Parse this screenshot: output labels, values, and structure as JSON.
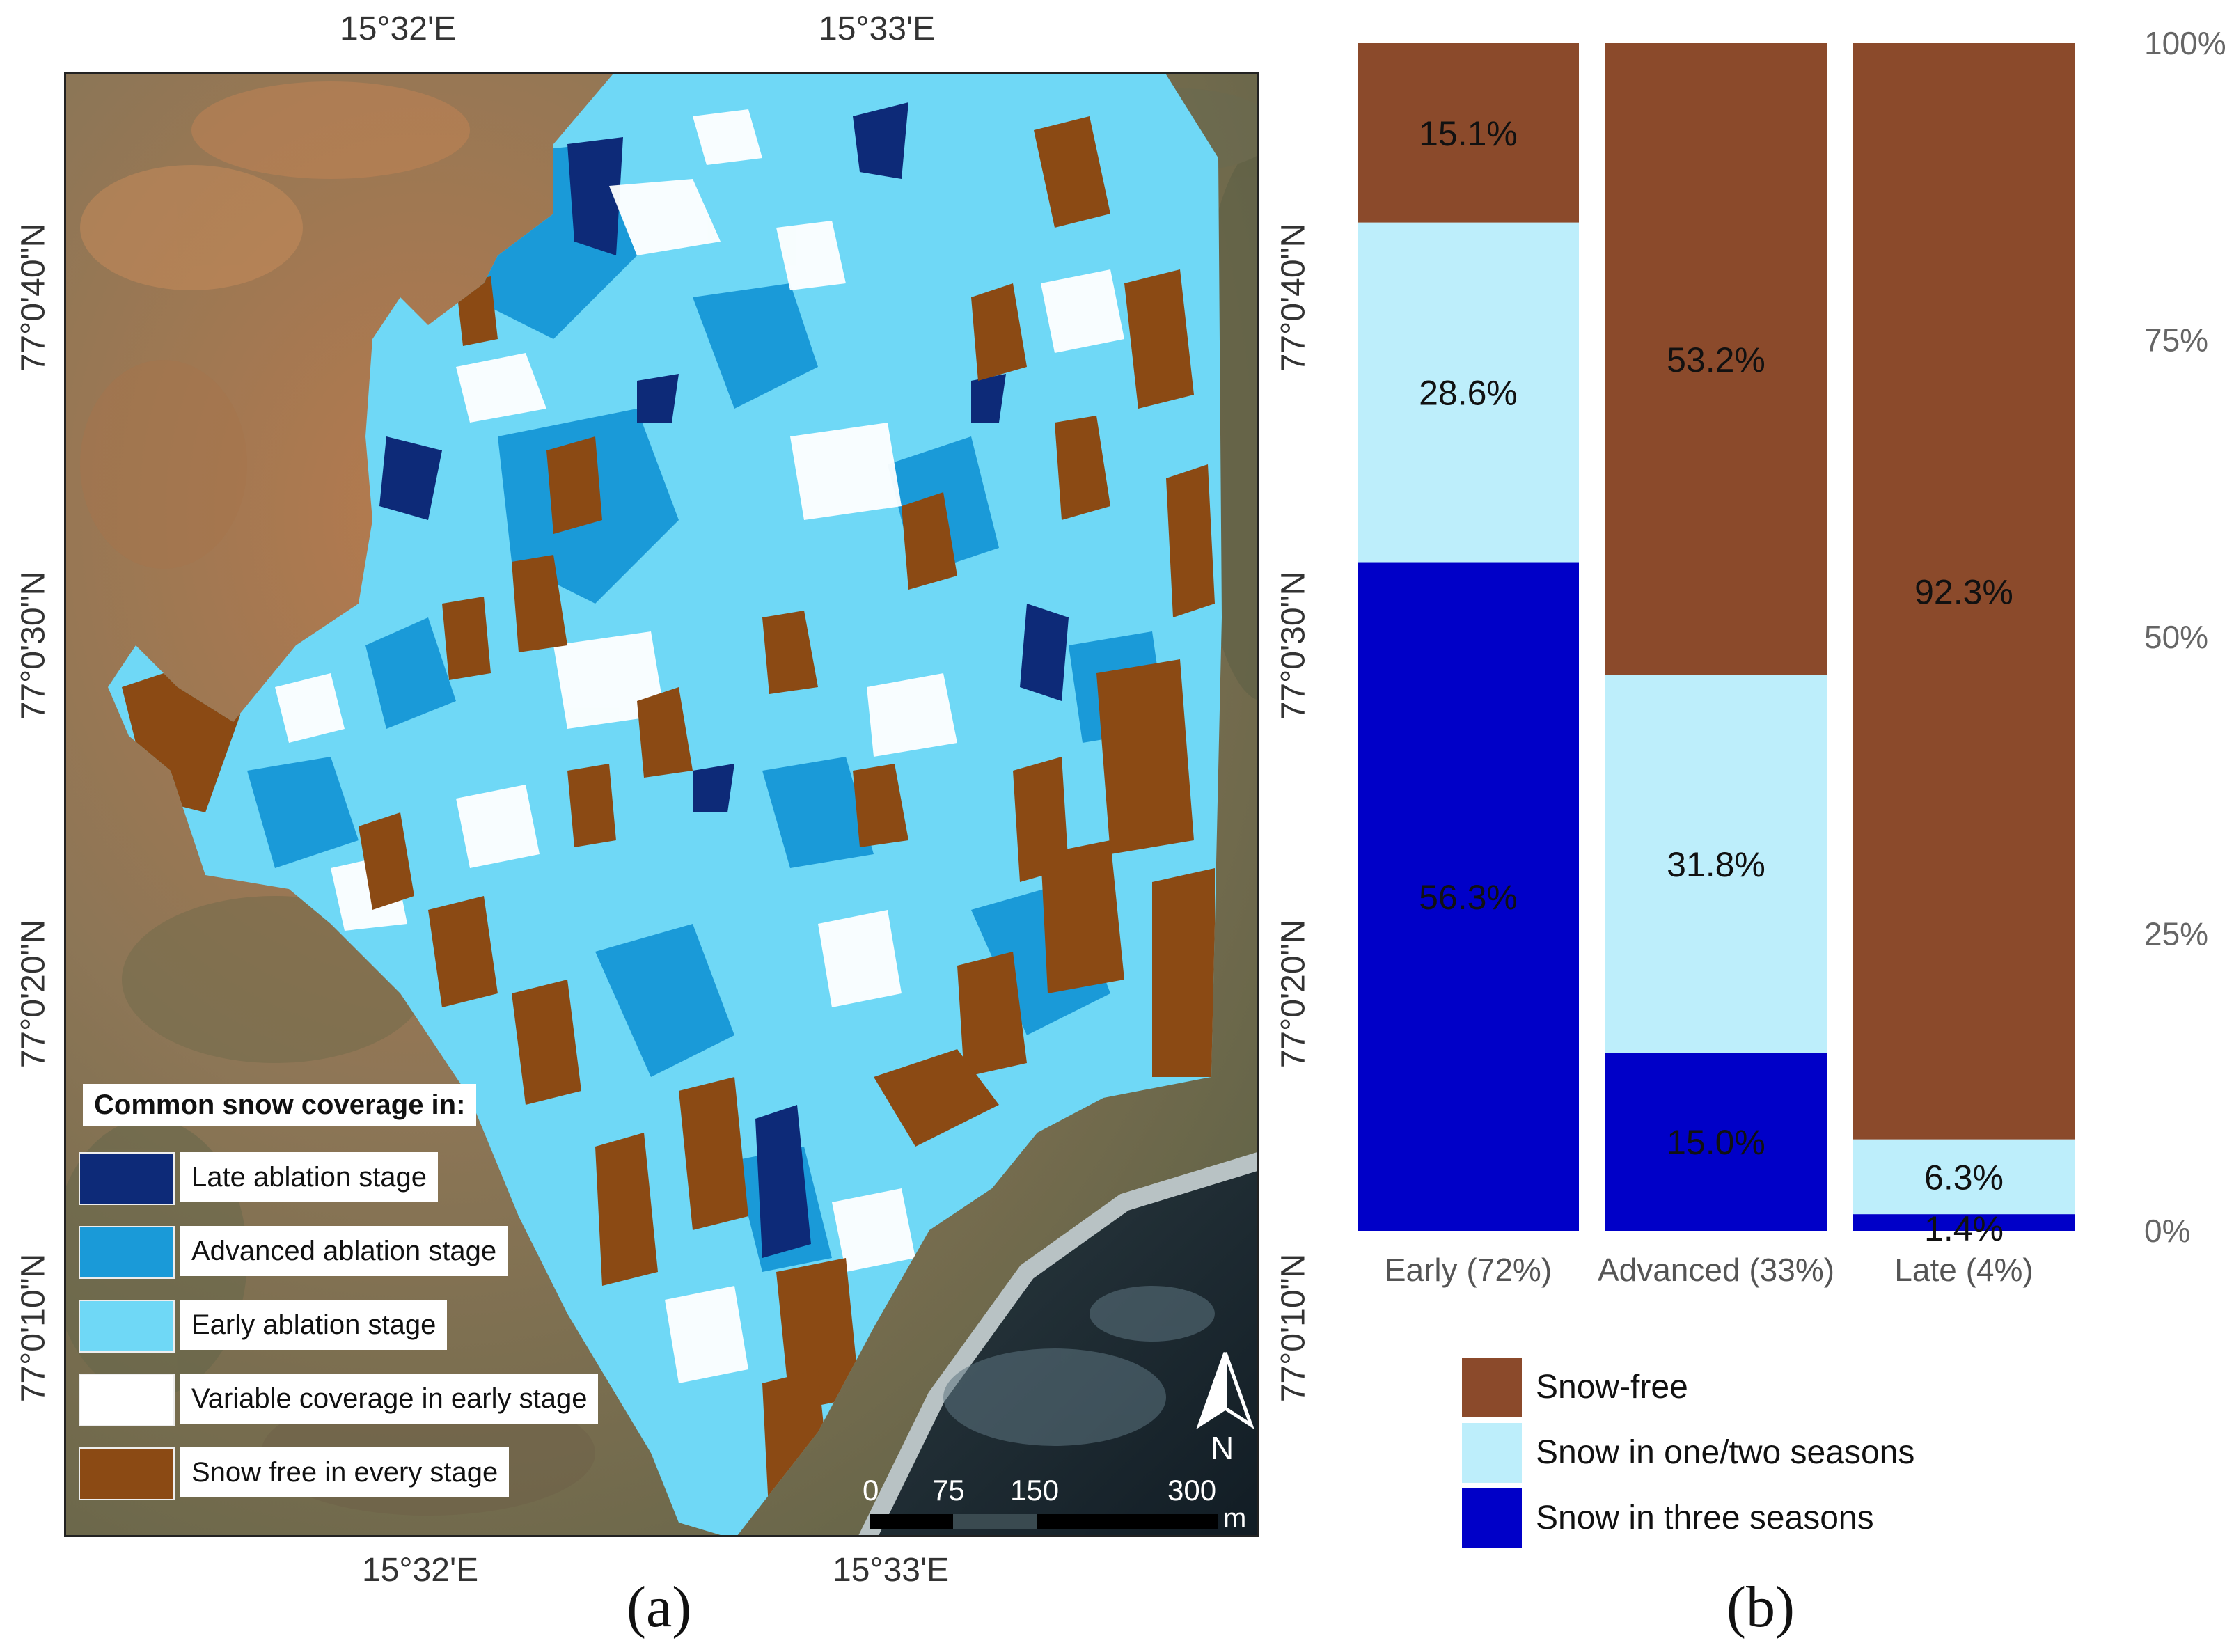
{
  "panel_a": {
    "label": "(a)",
    "lon_ticks_top": [
      "15°32'E",
      "15°33'E"
    ],
    "lon_ticks_bottom": [
      "15°32'E",
      "15°33'E"
    ],
    "lat_ticks_left": [
      "77°0'40\"N",
      "77°0'30\"N",
      "77°0'20\"N",
      "77°0'10\"N"
    ],
    "lat_ticks_right": [
      "77°0'40\"N",
      "77°0'30\"N",
      "77°0'20\"N",
      "77°0'10\"N"
    ],
    "legend": {
      "title": "Common snow coverage in:",
      "items": [
        {
          "label": "Late ablation stage",
          "color": "#0d2a78"
        },
        {
          "label": "Advanced ablation stage",
          "color": "#1a9ad8"
        },
        {
          "label": "Early ablation stage",
          "color": "#6fd8f6"
        },
        {
          "label": "Variable coverage in early stage",
          "color": "#ffffff"
        },
        {
          "label": "Snow free in every stage",
          "color": "#8b4a14"
        }
      ]
    },
    "north_arrow": {
      "label": "N",
      "icon": "north-arrow-icon"
    },
    "scale_bar": {
      "ticks": [
        "0",
        "75",
        "150",
        "300"
      ],
      "unit": "m"
    },
    "colors": {
      "late": "#0d2a78",
      "advanced": "#1a9ad8",
      "early": "#6fd8f6",
      "variable": "#ffffff",
      "snow_free": "#8b4a14",
      "terrain": "#8e7450",
      "sea": "#1e2a33"
    }
  },
  "panel_b": {
    "label": "(b)",
    "legend": [
      {
        "label": "Snow-free",
        "color": "#8b4a2b"
      },
      {
        "label": "Snow in one/two seasons",
        "color": "#bdeefb"
      },
      {
        "label": "Snow in three seasons",
        "color": "#0000c8"
      }
    ]
  },
  "chart_data": {
    "type": "bar",
    "stacked": true,
    "normalized": true,
    "categories": [
      "Early (72%)",
      "Advanced (33%)",
      "Late (4%)"
    ],
    "series": [
      {
        "name": "Snow in three seasons",
        "values": [
          56.3,
          15.0,
          1.4
        ],
        "labels": [
          "56.3%",
          "15.0%",
          "1.4%"
        ],
        "color": "#0000c8"
      },
      {
        "name": "Snow in one/two seasons",
        "values": [
          28.6,
          31.8,
          6.3
        ],
        "labels": [
          "28.6%",
          "31.8%",
          "6.3%"
        ],
        "color": "#bdeefb"
      },
      {
        "name": "Snow-free",
        "values": [
          15.1,
          53.2,
          92.3
        ],
        "labels": [
          "15.1%",
          "53.2%",
          "92.3%"
        ],
        "color": "#8b4a2b"
      }
    ],
    "y_ticks": [
      "0%",
      "25%",
      "50%",
      "75%",
      "100%"
    ],
    "ylim": [
      0,
      100
    ],
    "y_axis_position": "right",
    "grid": false,
    "legend_position": "bottom"
  }
}
